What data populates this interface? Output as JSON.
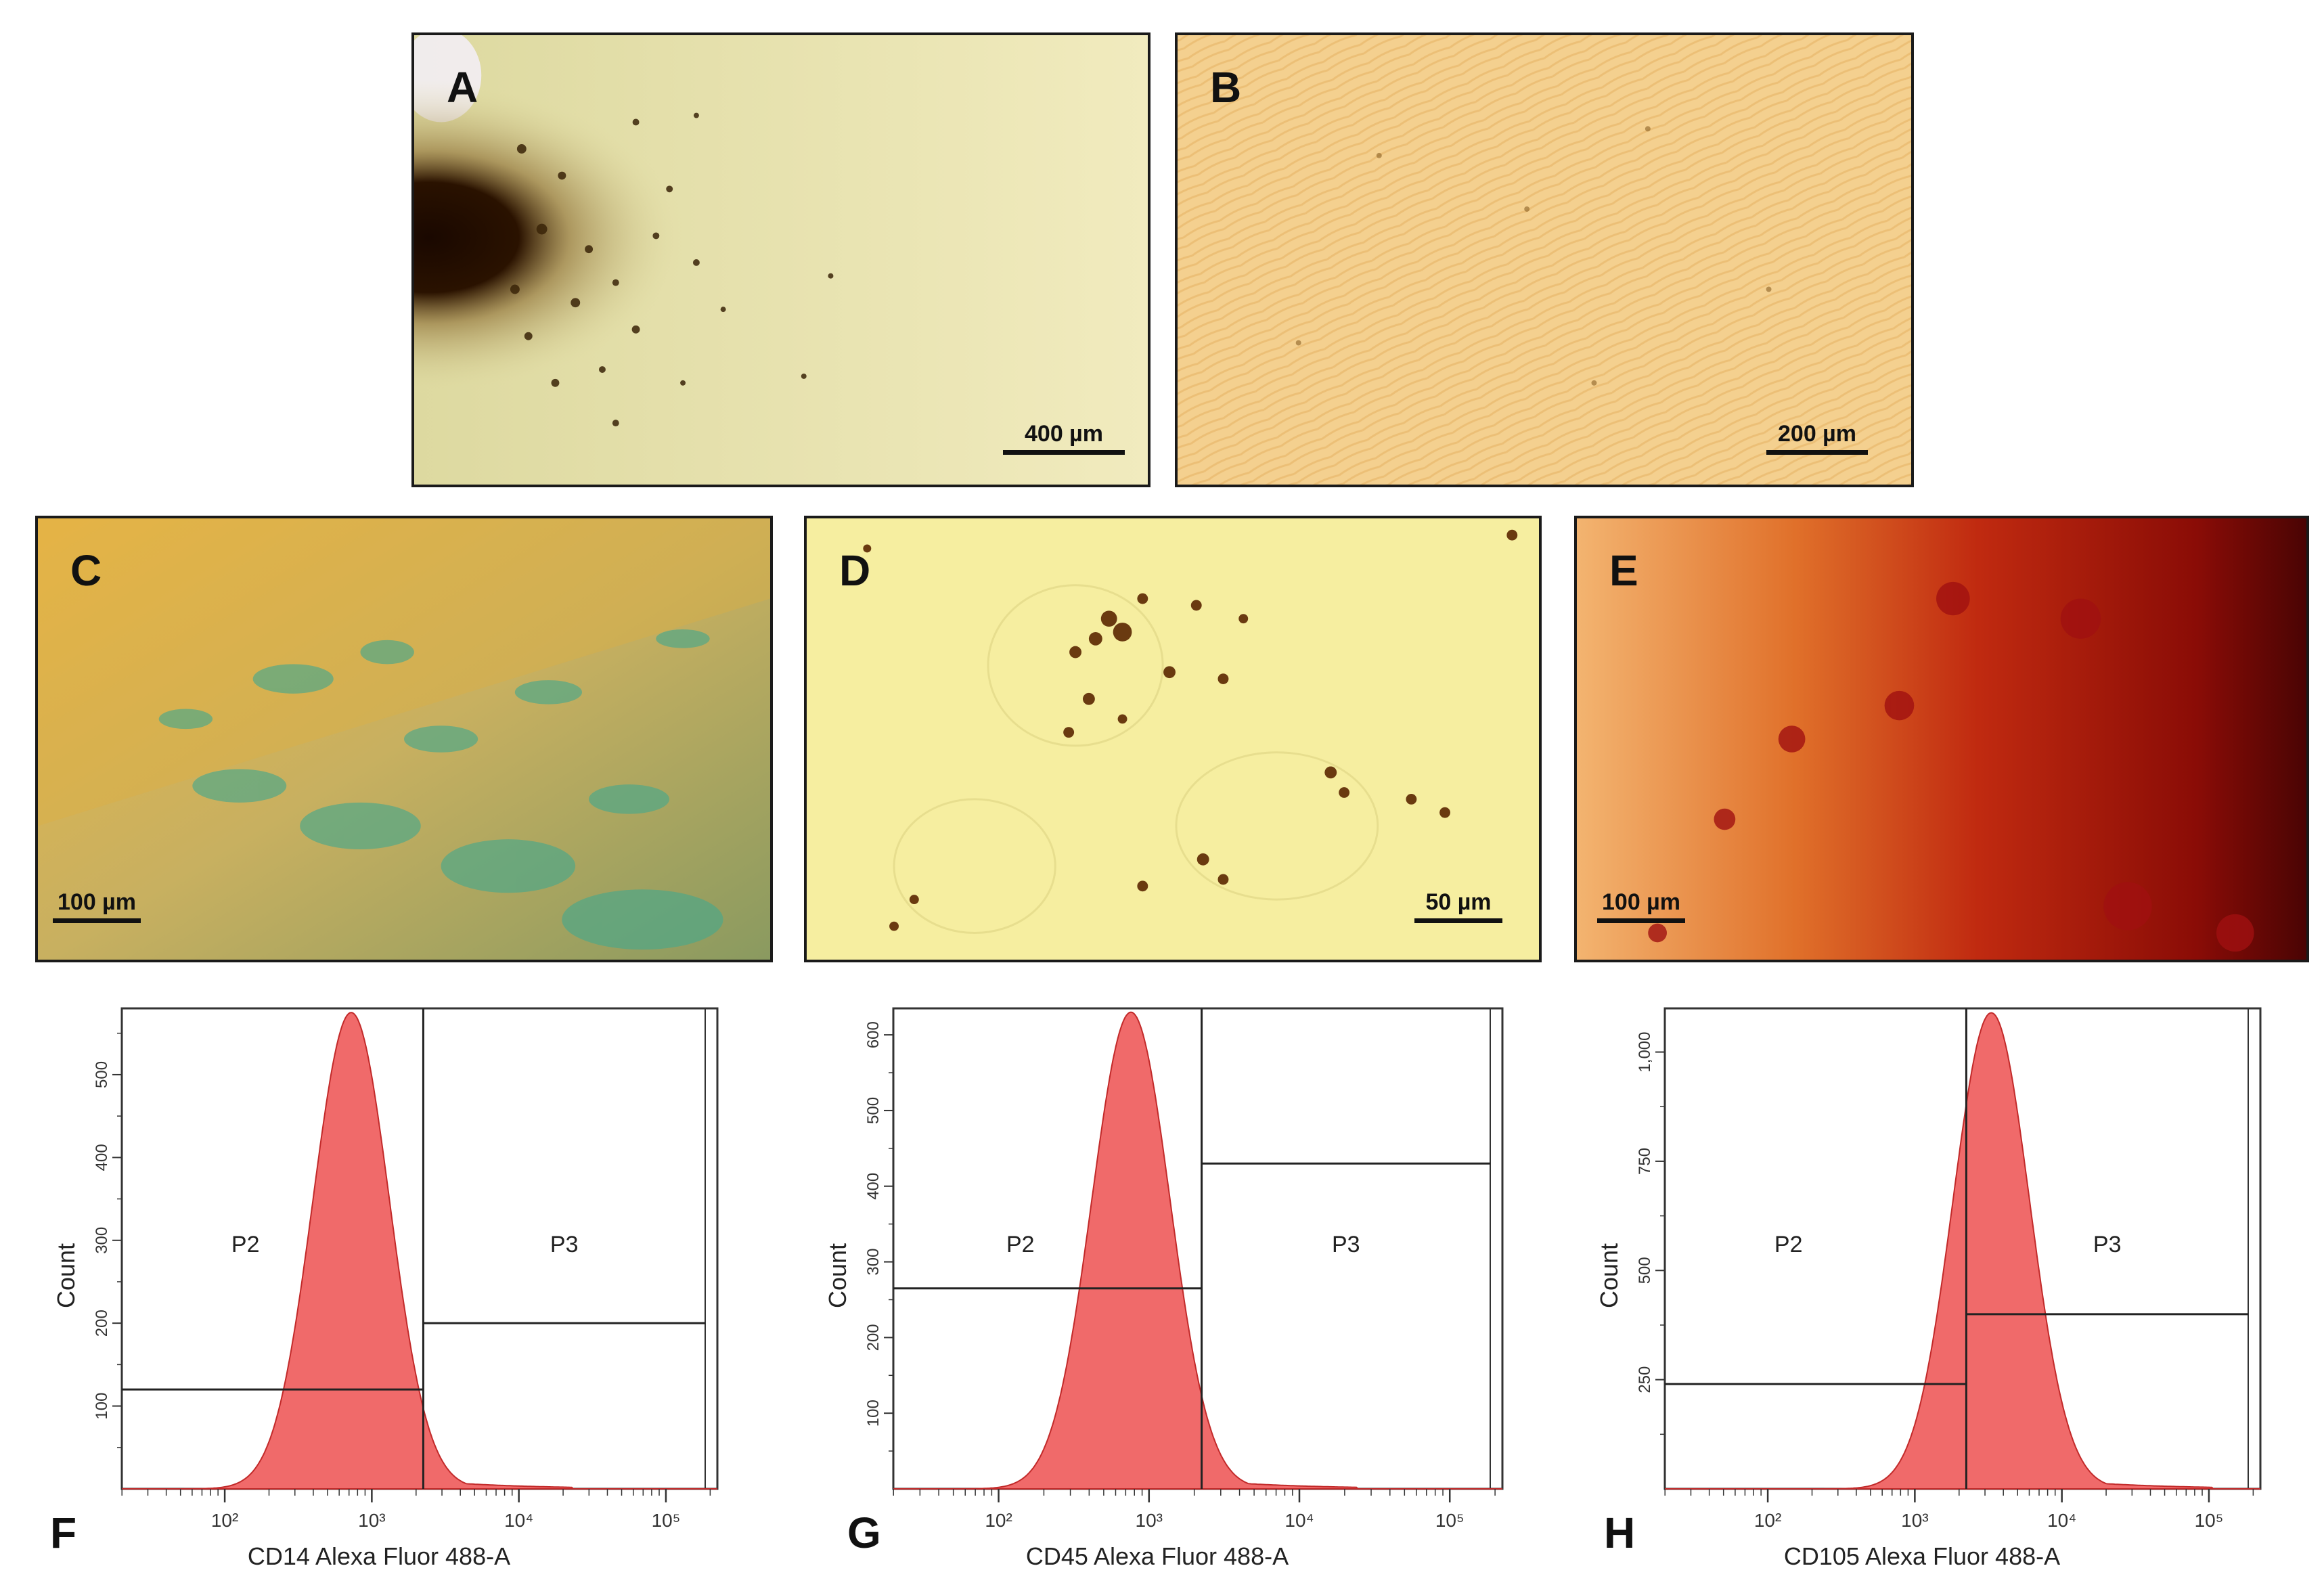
{
  "micrographs": [
    {
      "letter": "A",
      "scale": "400 µm"
    },
    {
      "letter": "B",
      "scale": "200 µm"
    },
    {
      "letter": "C",
      "scale": "100 µm"
    },
    {
      "letter": "D",
      "scale": "50 µm"
    },
    {
      "letter": "E",
      "scale": "100 µm"
    }
  ],
  "colors": {
    "histogram_fill": "#f06a6a",
    "histogram_stroke": "#c22a2a",
    "gate": "#222222"
  },
  "chart_data": [
    {
      "panel": "F",
      "type": "area",
      "xlabel": "CD14 Alexa Fluor 488-A",
      "ylabel": "Count",
      "x_scale": "log",
      "x_ticks": [
        "10²",
        "10³",
        "10⁴",
        "10⁵"
      ],
      "y_ticks": [
        "100",
        "200",
        "300",
        "400",
        "500"
      ],
      "ylim": [
        0,
        580
      ],
      "peak_log10": 2.86,
      "peak_count": 575,
      "gates": [
        {
          "name": "P2",
          "x_range_log10": [
            1.3,
            3.35
          ],
          "y_level": 120
        },
        {
          "name": "P3",
          "x_range_log10": [
            3.35,
            5.35
          ],
          "y_level": 200
        }
      ]
    },
    {
      "panel": "G",
      "type": "area",
      "xlabel": "CD45 Alexa Fluor 488-A",
      "ylabel": "Count",
      "x_scale": "log",
      "x_ticks": [
        "10²",
        "10³",
        "10⁴",
        "10⁵"
      ],
      "y_ticks": [
        "100",
        "200",
        "300",
        "400",
        "500",
        "600"
      ],
      "ylim": [
        0,
        635
      ],
      "peak_log10": 2.88,
      "peak_count": 630,
      "gates": [
        {
          "name": "P2",
          "x_range_log10": [
            1.3,
            3.35
          ],
          "y_level": 265
        },
        {
          "name": "P3",
          "x_range_log10": [
            3.35,
            5.35
          ],
          "y_level": 430
        }
      ]
    },
    {
      "panel": "H",
      "type": "area",
      "xlabel": "CD105 Alexa Fluor 488-A",
      "ylabel": "Count",
      "x_scale": "log",
      "x_ticks": [
        "10²",
        "10³",
        "10⁴",
        "10⁵"
      ],
      "y_ticks": [
        "250",
        "500",
        "750",
        "1,000"
      ],
      "ylim": [
        0,
        1100
      ],
      "peak_log10": 3.52,
      "peak_count": 1090,
      "gates": [
        {
          "name": "P2",
          "x_range_log10": [
            1.3,
            3.35
          ],
          "y_level": 240
        },
        {
          "name": "P3",
          "x_range_log10": [
            3.35,
            5.35
          ],
          "y_level": 400
        }
      ]
    }
  ]
}
